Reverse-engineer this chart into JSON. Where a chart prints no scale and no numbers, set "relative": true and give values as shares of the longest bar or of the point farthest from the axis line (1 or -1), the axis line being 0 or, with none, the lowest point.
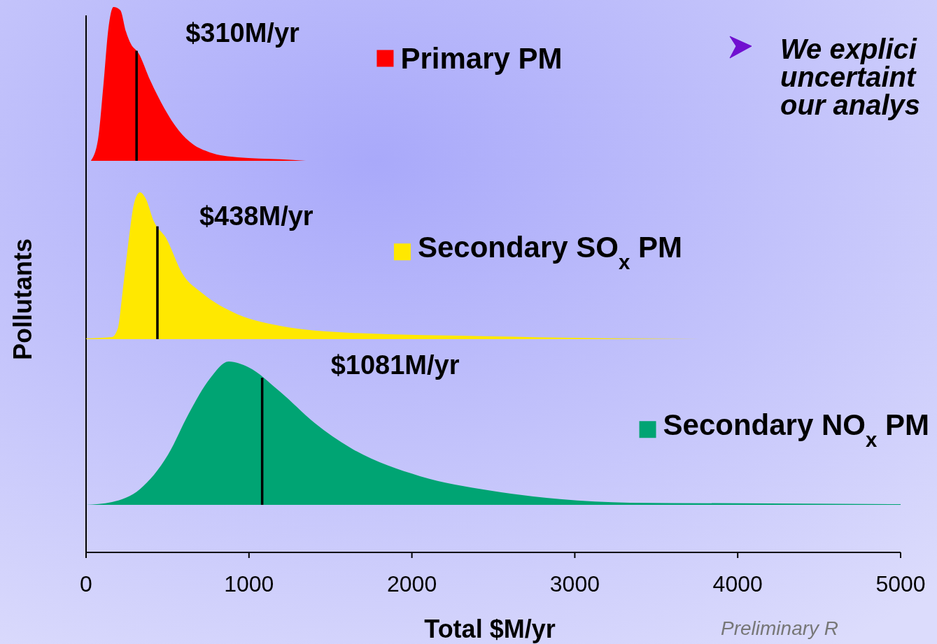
{
  "chart_data": [
    {
      "type": "area",
      "relative": true,
      "xlim": [
        0,
        5000
      ],
      "tick_labels": false,
      "annotations": [
        "We explici",
        "uncertaint",
        "our analys"
      ],
      "series": [
        {
          "name": "Primary PM",
          "color": "#ff0000",
          "x": [
            30,
            73,
            107,
            137,
            168,
            210,
            245,
            275,
            322,
            395,
            481,
            567,
            653,
            760,
            932,
            1190,
            1349
          ],
          "values": [
            0,
            0.136,
            0.5,
            0.86,
            1,
            0.98,
            0.84,
            0.76,
            0.7,
            0.52,
            0.34,
            0.2,
            0.11,
            0.055,
            0.023,
            0.01,
            0
          ]
        }
      ],
      "ref_lines": [
        {
          "axis": "x",
          "value": 310,
          "label": "$310M/yr",
          "color": "#000000"
        }
      ]
    },
    {
      "type": "area",
      "relative": true,
      "xlim": [
        0,
        5000
      ],
      "tick_labels": false,
      "ylabel": "Pollutants",
      "series": [
        {
          "name": "Secondary SO$_{x}$ PM",
          "color": "#ffe800",
          "x": [
            0,
            159,
            194,
            223,
            258,
            296,
            331,
            365,
            417,
            490,
            589,
            717,
            889,
            1190,
            1620,
            2479,
            3768
          ],
          "values": [
            0.005,
            0.014,
            0.07,
            0.31,
            0.64,
            0.93,
            1,
            0.96,
            0.8,
            0.69,
            0.45,
            0.31,
            0.19,
            0.09,
            0.043,
            0.019,
            0
          ]
        }
      ],
      "ref_lines": [
        {
          "axis": "x",
          "value": 438,
          "label": "$438M/yr",
          "color": "#000000"
        }
      ]
    },
    {
      "type": "area",
      "relative": true,
      "xlim": [
        0,
        5000
      ],
      "xticks": [
        0,
        1000,
        2000,
        3000,
        4000,
        5000
      ],
      "tick_labels": "x",
      "xlabel": "Total $M/yr",
      "annotations": [
        "Preliminary R"
      ],
      "series": [
        {
          "name": "Secondary NO$_{x}$ PM",
          "color": "#00a473",
          "x": [
            0,
            159,
            331,
            503,
            632,
            760,
            876,
            997,
            1190,
            1405,
            1620,
            2049,
            2479,
            2908,
            3338,
            4197,
            5000
          ],
          "values": [
            0,
            0.02,
            0.11,
            0.35,
            0.64,
            0.88,
            1,
            0.96,
            0.79,
            0.57,
            0.4,
            0.2,
            0.1,
            0.04,
            0.015,
            0.01,
            0.005
          ]
        }
      ],
      "ref_lines": [
        {
          "axis": "x",
          "value": 1081,
          "label": "$1081M/yr",
          "color": "#000000"
        }
      ]
    }
  ]
}
